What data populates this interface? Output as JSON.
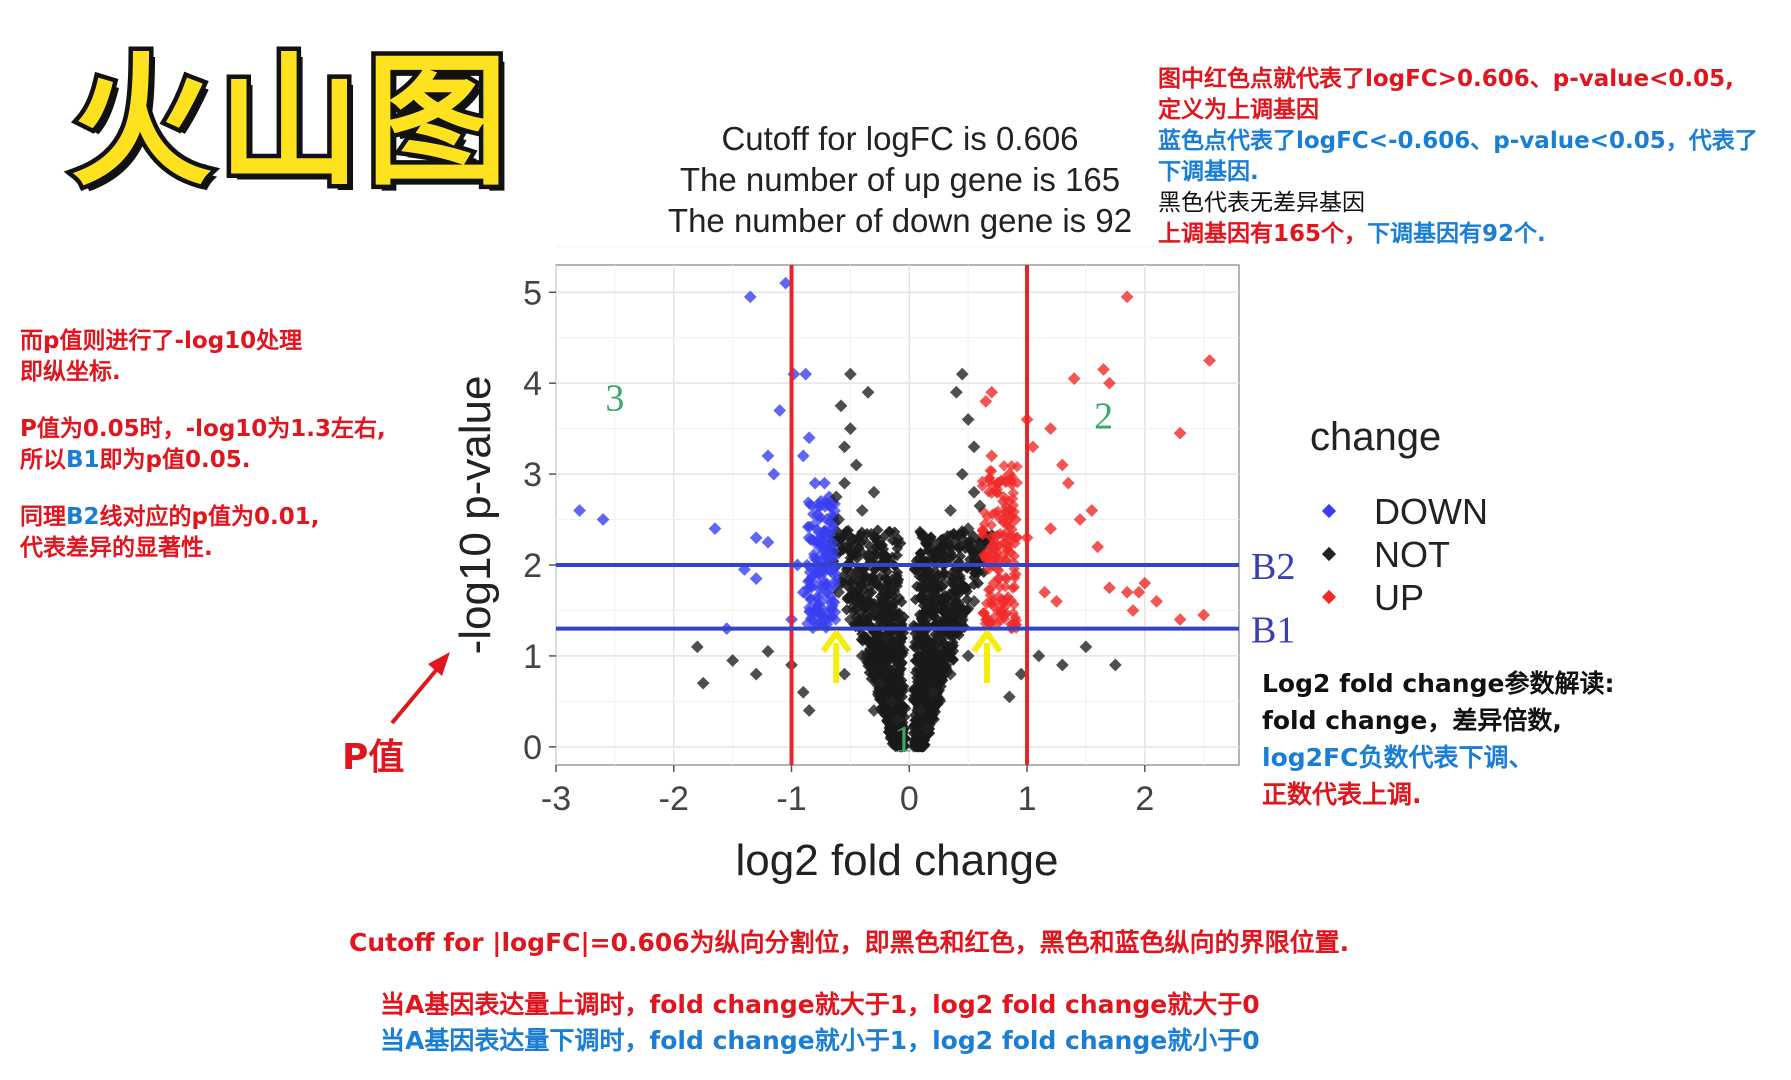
{
  "header": {
    "title": "火山图"
  },
  "chart_data": {
    "type": "scatter",
    "title_lines": [
      "Cutoff for logFC is 0.606",
      "The number of up gene is 165",
      "The number of down gene is 92"
    ],
    "xlabel": "log2 fold change",
    "ylabel": "-log10 p-value",
    "xlim": [
      -3,
      2.8
    ],
    "ylim": [
      -0.2,
      5.3
    ],
    "x_ticks": [
      -3,
      -2,
      -1,
      0,
      1,
      2
    ],
    "y_ticks": [
      0,
      1,
      2,
      3,
      4,
      5
    ],
    "grid": true,
    "vlines": [
      -1,
      1
    ],
    "hlines": [
      {
        "y": 2.0,
        "label": "B2"
      },
      {
        "y": 1.3,
        "label": "B1"
      }
    ],
    "region_labels": [
      {
        "label": "3",
        "x": -2.5,
        "y": 3.7
      },
      {
        "label": "2",
        "x": 1.65,
        "y": 3.5
      },
      {
        "label": "1",
        "x": -0.05,
        "y": -0.05
      }
    ],
    "arrow_x": [
      -0.62,
      0.66
    ],
    "arrow_y_range": [
      0.7,
      1.25
    ],
    "legend": {
      "title": "change",
      "placement": "right",
      "entries": [
        {
          "name": "DOWN",
          "color": "#3a3ff0"
        },
        {
          "name": "NOT",
          "color": "#222222"
        },
        {
          "name": "UP",
          "color": "#f02a2a"
        }
      ]
    },
    "series": [
      {
        "name": "DOWN",
        "color": "#3a3ff0",
        "points": [
          [
            -1.35,
            4.95
          ],
          [
            -1.05,
            5.1
          ],
          [
            -0.98,
            4.1
          ],
          [
            -0.88,
            4.1
          ],
          [
            -1.1,
            3.7
          ],
          [
            -2.8,
            2.6
          ],
          [
            -2.6,
            2.5
          ],
          [
            -1.65,
            2.4
          ],
          [
            -1.3,
            2.3
          ],
          [
            -1.2,
            2.25
          ],
          [
            -1.4,
            1.95
          ],
          [
            -1.55,
            1.3
          ],
          [
            -1.3,
            1.85
          ],
          [
            -1.0,
            1.4
          ],
          [
            -1.2,
            3.2
          ],
          [
            -1.15,
            3.0
          ],
          [
            -0.9,
            3.2
          ],
          [
            -0.85,
            3.4
          ],
          [
            -0.8,
            2.9
          ],
          [
            -0.75,
            2.7
          ],
          [
            -0.7,
            2.5
          ],
          [
            -0.68,
            2.2
          ],
          [
            -0.75,
            2.05
          ],
          [
            -0.85,
            2.3
          ],
          [
            -0.65,
            1.6
          ],
          [
            -0.72,
            1.8
          ],
          [
            -0.8,
            1.5
          ],
          [
            -0.9,
            1.7
          ],
          [
            -0.95,
            2.0
          ],
          [
            -0.78,
            2.55
          ],
          [
            -0.72,
            2.9
          ],
          [
            -0.66,
            2.4
          ],
          [
            -0.7,
            1.35
          ],
          [
            -0.68,
            2.75
          ]
        ]
      },
      {
        "name": "UP",
        "color": "#f02a2a",
        "points": [
          [
            1.85,
            4.95
          ],
          [
            2.55,
            4.25
          ],
          [
            1.65,
            4.15
          ],
          [
            1.4,
            4.05
          ],
          [
            1.7,
            4.0
          ],
          [
            2.3,
            3.45
          ],
          [
            1.2,
            3.5
          ],
          [
            0.65,
            3.8
          ],
          [
            0.7,
            3.9
          ],
          [
            1.0,
            3.6
          ],
          [
            1.05,
            3.3
          ],
          [
            1.3,
            3.1
          ],
          [
            1.35,
            2.9
          ],
          [
            1.55,
            2.6
          ],
          [
            1.45,
            2.5
          ],
          [
            1.2,
            2.4
          ],
          [
            1.0,
            2.3
          ],
          [
            0.9,
            2.5
          ],
          [
            0.8,
            2.7
          ],
          [
            0.75,
            2.9
          ],
          [
            0.7,
            2.2
          ],
          [
            0.68,
            2.0
          ],
          [
            0.72,
            1.8
          ],
          [
            0.8,
            1.6
          ],
          [
            0.9,
            1.9
          ],
          [
            1.15,
            1.7
          ],
          [
            1.25,
            1.6
          ],
          [
            1.7,
            1.75
          ],
          [
            1.85,
            1.7
          ],
          [
            1.95,
            1.7
          ],
          [
            2.1,
            1.6
          ],
          [
            2.5,
            1.45
          ],
          [
            2.3,
            1.4
          ],
          [
            1.9,
            1.5
          ],
          [
            0.66,
            1.4
          ],
          [
            0.7,
            3.2
          ],
          [
            0.85,
            3.0
          ],
          [
            1.6,
            2.2
          ],
          [
            2.0,
            1.8
          ]
        ]
      },
      {
        "name": "NOT",
        "color": "#222222",
        "points": [
          [
            -0.5,
            4.1
          ],
          [
            -0.35,
            3.9
          ],
          [
            -0.5,
            3.5
          ],
          [
            -0.55,
            3.3
          ],
          [
            -0.45,
            3.1
          ],
          [
            -0.55,
            2.9
          ],
          [
            -0.3,
            2.8
          ],
          [
            -0.4,
            2.6
          ],
          [
            -0.6,
            2.5
          ],
          [
            -0.5,
            2.3
          ],
          [
            -0.35,
            2.1
          ],
          [
            -0.45,
            1.9
          ],
          [
            -0.6,
            1.7
          ],
          [
            -0.3,
            1.5
          ],
          [
            -0.5,
            1.4
          ],
          [
            -0.2,
            1.2
          ],
          [
            -0.4,
            1.0
          ],
          [
            -0.55,
            0.8
          ],
          [
            -0.25,
            0.7
          ],
          [
            -0.15,
            0.5
          ],
          [
            -0.3,
            0.4
          ],
          [
            -0.1,
            0.3
          ],
          [
            0.4,
            3.9
          ],
          [
            0.5,
            3.6
          ],
          [
            0.55,
            3.3
          ],
          [
            0.45,
            3.0
          ],
          [
            0.55,
            2.8
          ],
          [
            0.35,
            2.6
          ],
          [
            0.5,
            2.4
          ],
          [
            0.6,
            2.2
          ],
          [
            0.4,
            2.0
          ],
          [
            0.3,
            1.8
          ],
          [
            0.55,
            1.6
          ],
          [
            0.45,
            1.4
          ],
          [
            0.25,
            1.2
          ],
          [
            0.5,
            1.0
          ],
          [
            0.35,
            0.8
          ],
          [
            0.2,
            0.6
          ],
          [
            0.1,
            0.4
          ],
          [
            0.15,
            0.2
          ],
          [
            -1.8,
            1.1
          ],
          [
            -1.75,
            0.7
          ],
          [
            -1.5,
            0.95
          ],
          [
            -1.3,
            0.8
          ],
          [
            -1.2,
            1.05
          ],
          [
            -1.0,
            0.9
          ],
          [
            -0.9,
            0.6
          ],
          [
            -0.85,
            0.4
          ],
          [
            1.1,
            1.0
          ],
          [
            1.3,
            0.9
          ],
          [
            1.5,
            1.1
          ],
          [
            1.75,
            0.9
          ],
          [
            0.85,
            0.55
          ],
          [
            0.95,
            0.8
          ],
          [
            -0.58,
            3.75
          ],
          [
            0.45,
            4.1
          ],
          [
            -0.62,
            2.75
          ],
          [
            0.6,
            2.65
          ]
        ]
      }
    ]
  },
  "left_notes": {
    "line1": "而p值则进行了-log10处理",
    "line2": "即纵坐标.",
    "line3": "P值为0.05时，-log10为1.3左右,",
    "line4_a": "所以",
    "line4_b": "B1",
    "line4_c": "即为p值0.05.",
    "line5_a": "同理",
    "line5_b": "B2",
    "line5_c": "线对应的p值为0.01,",
    "line6": "代表差异的显著性."
  },
  "p_label": "P值",
  "right_top_notes": {
    "line1": "图中红色点就代表了logFC>0.606、p-value<0.05,",
    "line2": "定义为上调基因",
    "line3": "蓝色点代表了logFC<-0.606、p-value<0.05，代表了",
    "line4": "下调基因.",
    "line5": "黑色代表无差异基因",
    "line6_a": "上调基因有165个，",
    "line6_b": "下调基因有92个."
  },
  "right_bottom_notes": {
    "line1": "Log2 fold change参数解读:",
    "line2": "fold change，差异倍数,",
    "line3": "log2FC负数代表下调、",
    "line4": "正数代表上调."
  },
  "bottom_notes": {
    "line1": "Cutoff for |logFC|=0.606为纵向分割位，即黑色和红色，黑色和蓝色纵向的界限位置.",
    "line2": "当A基因表达量上调时，fold change就大于1，log2 fold change就大于0",
    "line3": "当A基因表达量下调时，fold change就小于1，log2 fold change就小于0"
  },
  "colors": {
    "red_text": "#e0151e",
    "blue_text": "#1a7fd4",
    "line_red": "#e8232a",
    "line_blue": "#3344cc",
    "arrow_yellow": "#f4ee0e",
    "region_label": "#3aa86b"
  }
}
